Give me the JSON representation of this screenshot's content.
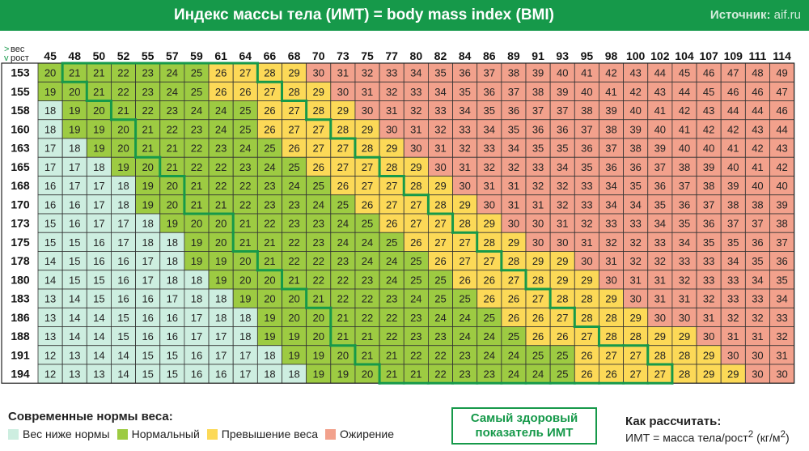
{
  "header": {
    "title": "Индекс массы тела (ИМТ)  =  body mass index (BMI)",
    "source_label": "Источник:",
    "source_value": "aif.ru"
  },
  "chart_data": {
    "type": "table",
    "corner_labels": [
      "вес",
      "рост"
    ],
    "weights": [
      45,
      48,
      50,
      52,
      55,
      57,
      59,
      61,
      64,
      66,
      68,
      70,
      73,
      75,
      77,
      80,
      82,
      84,
      86,
      89,
      91,
      93,
      95,
      98,
      100,
      102,
      104,
      107,
      109,
      111,
      114
    ],
    "heights": [
      153,
      155,
      158,
      160,
      163,
      165,
      168,
      170,
      173,
      175,
      178,
      180,
      183,
      186,
      188,
      191,
      194
    ],
    "bmi": [
      [
        20,
        21,
        21,
        22,
        23,
        24,
        25,
        26,
        27,
        28,
        29,
        30,
        31,
        32,
        33,
        34,
        35,
        36,
        37,
        38,
        39,
        40,
        41,
        42,
        43,
        44,
        45,
        46,
        47,
        48,
        49
      ],
      [
        19,
        20,
        21,
        22,
        23,
        24,
        25,
        26,
        26,
        27,
        28,
        29,
        30,
        31,
        32,
        33,
        34,
        35,
        36,
        37,
        38,
        39,
        40,
        41,
        42,
        43,
        44,
        45,
        46,
        46,
        47
      ],
      [
        18,
        19,
        20,
        21,
        22,
        23,
        24,
        24,
        25,
        26,
        27,
        28,
        29,
        30,
        31,
        32,
        33,
        34,
        35,
        36,
        37,
        37,
        38,
        39,
        40,
        41,
        42,
        43,
        44,
        44,
        46
      ],
      [
        18,
        19,
        19,
        20,
        21,
        22,
        23,
        24,
        25,
        26,
        27,
        27,
        28,
        29,
        30,
        31,
        32,
        33,
        34,
        35,
        36,
        36,
        37,
        38,
        39,
        40,
        41,
        42,
        42,
        43,
        44
      ],
      [
        17,
        18,
        19,
        20,
        21,
        21,
        22,
        23,
        24,
        25,
        26,
        27,
        27,
        28,
        29,
        30,
        31,
        32,
        33,
        34,
        35,
        35,
        36,
        37,
        38,
        39,
        40,
        40,
        41,
        42,
        43
      ],
      [
        17,
        17,
        18,
        19,
        20,
        21,
        22,
        22,
        23,
        24,
        25,
        26,
        27,
        27,
        28,
        29,
        30,
        31,
        32,
        32,
        33,
        34,
        35,
        36,
        36,
        37,
        38,
        39,
        40,
        41,
        42
      ],
      [
        16,
        17,
        17,
        18,
        19,
        20,
        21,
        22,
        22,
        23,
        24,
        25,
        26,
        27,
        27,
        28,
        29,
        30,
        31,
        31,
        32,
        32,
        33,
        34,
        35,
        36,
        37,
        38,
        39,
        40,
        40
      ],
      [
        16,
        16,
        17,
        18,
        19,
        20,
        21,
        21,
        22,
        23,
        23,
        24,
        25,
        26,
        27,
        27,
        28,
        29,
        30,
        31,
        31,
        32,
        33,
        34,
        34,
        35,
        36,
        37,
        38,
        38,
        39
      ],
      [
        15,
        16,
        17,
        17,
        18,
        19,
        20,
        20,
        21,
        22,
        23,
        23,
        24,
        25,
        26,
        27,
        27,
        28,
        29,
        30,
        30,
        31,
        32,
        33,
        33,
        34,
        35,
        36,
        37,
        37,
        38
      ],
      [
        15,
        15,
        16,
        17,
        18,
        18,
        19,
        20,
        21,
        21,
        22,
        23,
        24,
        24,
        25,
        26,
        27,
        27,
        28,
        29,
        30,
        30,
        31,
        32,
        32,
        33,
        34,
        35,
        35,
        36,
        37
      ],
      [
        14,
        15,
        16,
        16,
        17,
        18,
        19,
        19,
        20,
        21,
        22,
        22,
        23,
        24,
        24,
        25,
        26,
        27,
        27,
        28,
        29,
        29,
        30,
        31,
        32,
        32,
        33,
        33,
        34,
        35,
        36
      ],
      [
        14,
        15,
        15,
        16,
        17,
        18,
        18,
        19,
        20,
        20,
        21,
        22,
        22,
        23,
        24,
        25,
        25,
        26,
        26,
        27,
        28,
        29,
        29,
        30,
        31,
        31,
        32,
        33,
        33,
        34,
        35
      ],
      [
        13,
        14,
        15,
        16,
        16,
        17,
        18,
        18,
        19,
        20,
        20,
        21,
        22,
        22,
        23,
        24,
        25,
        25,
        26,
        26,
        27,
        28,
        28,
        29,
        30,
        31,
        31,
        32,
        33,
        33,
        34
      ],
      [
        13,
        14,
        14,
        15,
        16,
        16,
        17,
        18,
        18,
        19,
        20,
        20,
        21,
        22,
        22,
        23,
        24,
        24,
        25,
        26,
        26,
        27,
        28,
        28,
        29,
        30,
        30,
        31,
        32,
        32,
        33
      ],
      [
        13,
        14,
        14,
        15,
        16,
        16,
        17,
        17,
        18,
        19,
        19,
        20,
        21,
        21,
        22,
        23,
        23,
        24,
        24,
        25,
        26,
        26,
        27,
        28,
        28,
        29,
        29,
        30,
        31,
        31,
        32
      ],
      [
        12,
        13,
        14,
        14,
        15,
        15,
        16,
        17,
        17,
        18,
        19,
        19,
        20,
        21,
        21,
        22,
        22,
        23,
        24,
        24,
        25,
        25,
        26,
        27,
        27,
        28,
        28,
        29,
        30,
        30,
        31
      ],
      [
        12,
        13,
        13,
        14,
        15,
        15,
        16,
        16,
        17,
        18,
        18,
        19,
        19,
        20,
        21,
        21,
        22,
        23,
        23,
        24,
        24,
        25,
        26,
        26,
        27,
        27,
        28,
        29,
        29,
        30,
        30
      ]
    ],
    "categories": [
      {
        "name": "Вес ниже нормы",
        "range": [
          0,
          18
        ],
        "color": "#cdeee0"
      },
      {
        "name": "Нормальный",
        "range": [
          19,
          25
        ],
        "color": "#9dcb42"
      },
      {
        "name": "Превышение веса",
        "range": [
          26,
          29
        ],
        "color": "#fcd957"
      },
      {
        "name": "Ожирение",
        "range": [
          30,
          99
        ],
        "color": "#f2a18c"
      }
    ],
    "healthy_range": [
      21,
      27
    ],
    "outline_color": "#16994a"
  },
  "legend": {
    "title": "Современные нормы веса:",
    "items": [
      {
        "label": "Вес ниже нормы",
        "color": "#cdeee0"
      },
      {
        "label": "Нормальный",
        "color": "#9dcb42"
      },
      {
        "label": "Превышение веса",
        "color": "#fcd957"
      },
      {
        "label": "Ожирение",
        "color": "#f2a18c"
      }
    ]
  },
  "healthy_box": {
    "line1": "Самый здоровый",
    "line2": "показатель ИМТ"
  },
  "calc": {
    "title": "Как рассчитать:",
    "formula_prefix": "ИМТ = масса тела/рост",
    "formula_sup": "2",
    "formula_units_open": " (кг/м",
    "formula_units_sup": "2",
    "formula_units_close": ")"
  }
}
